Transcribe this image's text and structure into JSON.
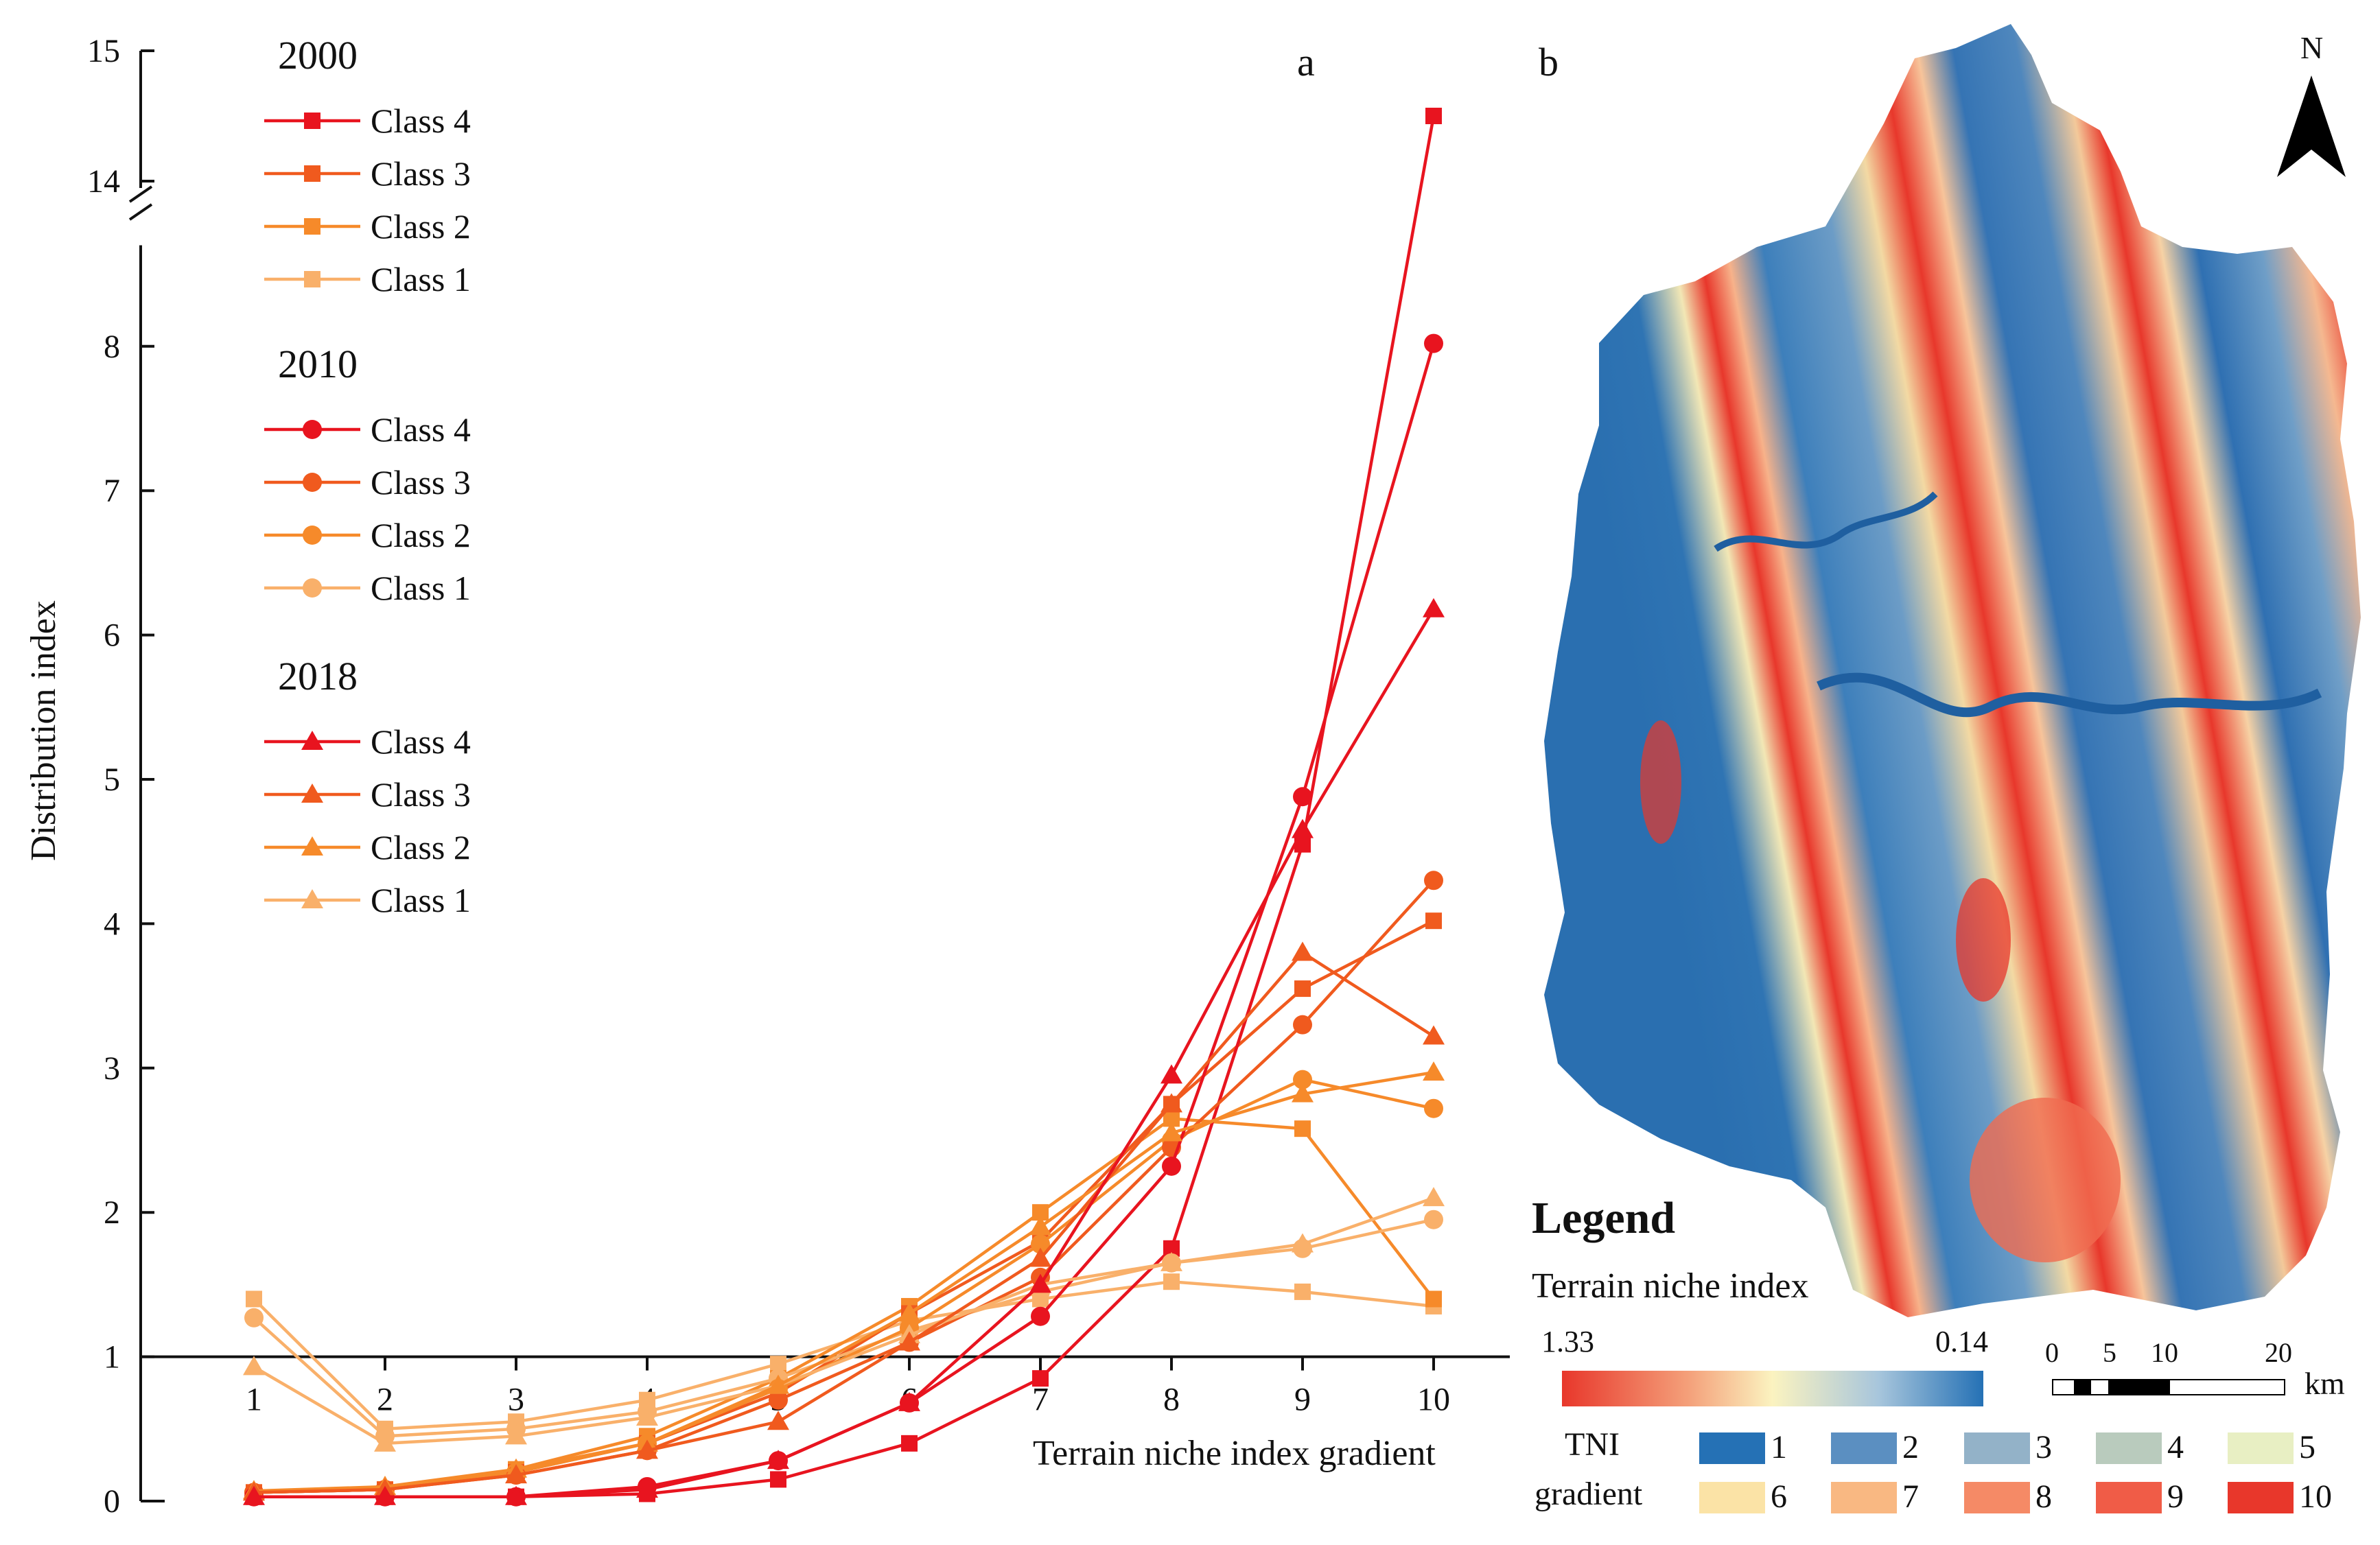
{
  "chart_data": {
    "type": "line",
    "panel_label": "a",
    "xlabel": "Terrain niche index gradient",
    "ylabel": "Distribution index",
    "x": [
      1,
      2,
      3,
      4,
      5,
      6,
      7,
      8,
      9,
      10
    ],
    "x_tick_labels": [
      "1",
      "2",
      "3",
      "4",
      "5",
      "6",
      "7",
      "8",
      "9",
      "10"
    ],
    "y_tick_labels": [
      "0",
      "1",
      "2",
      "3",
      "4",
      "5",
      "6",
      "7",
      "8",
      "14",
      "15"
    ],
    "ylim": [
      0,
      15
    ],
    "axis_break": [
      8.7,
      13.6
    ],
    "legend_position": "top-left",
    "groups": [
      {
        "year": "2000",
        "marker": "square",
        "series": [
          {
            "name": "Class 4",
            "color": "#e8141f",
            "values": [
              0.03,
              0.03,
              0.03,
              0.05,
              0.15,
              0.4,
              0.85,
              1.75,
              4.55,
              14.5
            ]
          },
          {
            "name": "Class 3",
            "color": "#f05a1e",
            "values": [
              0.06,
              0.08,
              0.2,
              0.4,
              0.75,
              1.3,
              1.8,
              2.75,
              3.55,
              4.02
            ]
          },
          {
            "name": "Class 2",
            "color": "#f68a2a",
            "values": [
              0.06,
              0.08,
              0.22,
              0.45,
              0.85,
              1.35,
              2.0,
              2.65,
              2.58,
              1.4
            ]
          },
          {
            "name": "Class 1",
            "color": "#f9b06a",
            "values": [
              1.4,
              0.5,
              0.55,
              0.7,
              0.95,
              1.25,
              1.4,
              1.52,
              1.45,
              1.35
            ]
          }
        ]
      },
      {
        "year": "2010",
        "marker": "circle",
        "series": [
          {
            "name": "Class 4",
            "color": "#e8141f",
            "values": [
              0.03,
              0.03,
              0.03,
              0.1,
              0.28,
              0.68,
              1.28,
              2.32,
              4.88,
              8.02
            ]
          },
          {
            "name": "Class 3",
            "color": "#f05a1e",
            "values": [
              0.06,
              0.08,
              0.18,
              0.35,
              0.7,
              1.1,
              1.55,
              2.45,
              3.3,
              4.3
            ]
          },
          {
            "name": "Class 2",
            "color": "#f68a2a",
            "values": [
              0.06,
              0.08,
              0.2,
              0.4,
              0.78,
              1.2,
              1.78,
              2.5,
              2.92,
              2.72
            ]
          },
          {
            "name": "Class 1",
            "color": "#f9b06a",
            "values": [
              1.27,
              0.45,
              0.5,
              0.62,
              0.85,
              1.18,
              1.45,
              1.65,
              1.75,
              1.95
            ]
          }
        ]
      },
      {
        "year": "2018",
        "marker": "triangle",
        "series": [
          {
            "name": "Class 4",
            "color": "#e8141f",
            "values": [
              0.03,
              0.03,
              0.03,
              0.08,
              0.28,
              0.68,
              1.5,
              2.95,
              4.65,
              6.18
            ]
          },
          {
            "name": "Class 3",
            "color": "#f05a1e",
            "values": [
              0.06,
              0.08,
              0.18,
              0.35,
              0.55,
              1.1,
              1.68,
              2.75,
              3.8,
              3.22
            ]
          },
          {
            "name": "Class 2",
            "color": "#f68a2a",
            "values": [
              0.07,
              0.1,
              0.22,
              0.4,
              0.8,
              1.3,
              1.9,
              2.55,
              2.82,
              2.97
            ]
          },
          {
            "name": "Class 1",
            "color": "#f9b06a",
            "values": [
              0.93,
              0.4,
              0.45,
              0.58,
              0.8,
              1.15,
              1.5,
              1.65,
              1.78,
              2.1
            ]
          }
        ]
      }
    ]
  },
  "map": {
    "panel_label": "b",
    "north": "N",
    "legend_title": "Legend",
    "legend_subtitle": "Terrain niche index",
    "ramp_left": "1.33",
    "ramp_right": "0.14",
    "tni_label_line1": "TNI",
    "tni_label_line2": "gradient",
    "gradient_classes": [
      {
        "label": "1",
        "color": "#2571b5"
      },
      {
        "label": "2",
        "color": "#5b8fc1"
      },
      {
        "label": "3",
        "color": "#93b2c8"
      },
      {
        "label": "4",
        "color": "#b9cbbd"
      },
      {
        "label": "5",
        "color": "#e8efc3"
      },
      {
        "label": "6",
        "color": "#fbe3a6"
      },
      {
        "label": "7",
        "color": "#f9b882"
      },
      {
        "label": "8",
        "color": "#f58a66"
      },
      {
        "label": "9",
        "color": "#f05c47"
      },
      {
        "label": "10",
        "color": "#e8372b"
      }
    ],
    "scale_ticks": [
      "0",
      "5",
      "10",
      "20"
    ],
    "scale_unit": "km"
  }
}
